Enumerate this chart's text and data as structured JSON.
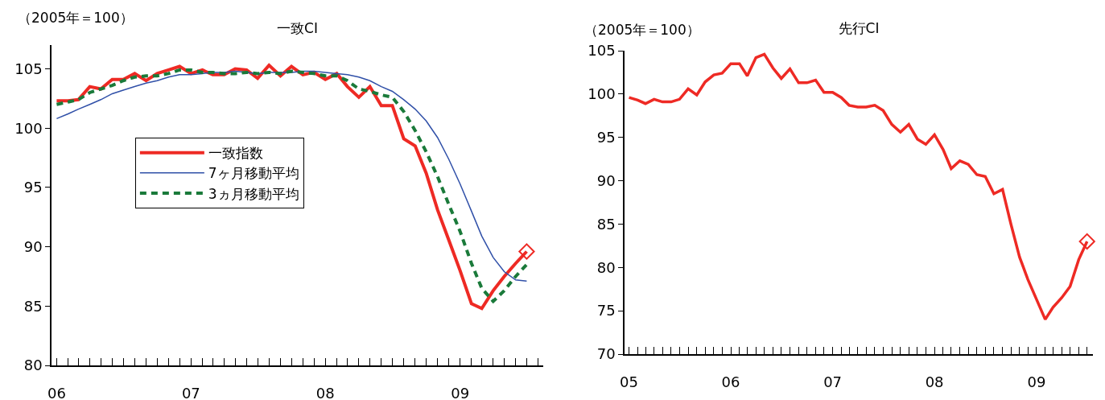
{
  "chart_data": [
    {
      "type": "line",
      "title": "一致CI",
      "ylabel": "（2005年＝100）",
      "x": [
        "2006-01",
        "2006-02",
        "2006-03",
        "2006-04",
        "2006-05",
        "2006-06",
        "2006-07",
        "2006-08",
        "2006-09",
        "2006-10",
        "2006-11",
        "2006-12",
        "2007-01",
        "2007-02",
        "2007-03",
        "2007-04",
        "2007-05",
        "2007-06",
        "2007-07",
        "2007-08",
        "2007-09",
        "2007-10",
        "2007-11",
        "2007-12",
        "2008-01",
        "2008-02",
        "2008-03",
        "2008-04",
        "2008-05",
        "2008-06",
        "2008-07",
        "2008-08",
        "2008-09",
        "2008-10",
        "2008-11",
        "2008-12",
        "2009-01",
        "2009-02",
        "2009-03",
        "2009-04",
        "2009-05",
        "2009-06",
        "2009-07"
      ],
      "series": [
        {
          "name": "一致指数",
          "color": "#ee2a24",
          "values": [
            102.3,
            102.3,
            102.4,
            103.5,
            103.3,
            104.1,
            104.1,
            104.6,
            104.0,
            104.6,
            104.9,
            105.2,
            104.6,
            104.9,
            104.5,
            104.5,
            105.0,
            104.9,
            104.2,
            105.3,
            104.4,
            105.2,
            104.5,
            104.7,
            104.1,
            104.6,
            103.5,
            102.6,
            103.5,
            101.9,
            101.9,
            99.1,
            98.5,
            96.2,
            93.1,
            90.6,
            88.0,
            85.2,
            84.8,
            86.3,
            87.5,
            88.6,
            89.6
          ]
        },
        {
          "name": "7ヶ月移動平均",
          "color": "#3050a8",
          "values": [
            100.8,
            101.2,
            101.6,
            102.0,
            102.4,
            102.9,
            103.2,
            103.5,
            103.8,
            104.0,
            104.3,
            104.5,
            104.5,
            104.6,
            104.7,
            104.7,
            104.8,
            104.7,
            104.6,
            104.7,
            104.7,
            104.7,
            104.8,
            104.8,
            104.7,
            104.6,
            104.5,
            104.3,
            104.0,
            103.5,
            103.1,
            102.4,
            101.6,
            100.6,
            99.2,
            97.4,
            95.3,
            93.0,
            90.9,
            89.1,
            87.9,
            87.2,
            87.1
          ]
        },
        {
          "name": "3ヵ月移動平均",
          "color": "#1a7a3a",
          "line_style": "dashed",
          "values": [
            102.0,
            102.2,
            102.4,
            103.0,
            103.3,
            103.6,
            104.0,
            104.3,
            104.4,
            104.4,
            104.6,
            104.9,
            104.9,
            104.7,
            104.7,
            104.6,
            104.6,
            104.7,
            104.6,
            104.7,
            104.6,
            104.8,
            104.7,
            104.6,
            104.4,
            104.4,
            104.0,
            103.3,
            103.1,
            102.8,
            102.6,
            101.4,
            99.8,
            98.0,
            95.9,
            93.6,
            91.3,
            88.6,
            86.5,
            85.4,
            86.3,
            87.5,
            88.5
          ]
        },
        {
          "type": "scatter",
          "x": [
            "2009-07"
          ],
          "color": "#ee2a24",
          "marker": "diamond",
          "values": [
            89.6
          ]
        }
      ],
      "xlim": [
        "2005-12-18",
        "2009-08-15"
      ],
      "xticks": [
        {
          "value": "2006-01",
          "label": "06"
        },
        {
          "value": "2007-01",
          "label": "07"
        },
        {
          "value": "2008-01",
          "label": "08"
        },
        {
          "value": "2009-01",
          "label": "09"
        }
      ],
      "ylim": [
        80,
        107
      ],
      "yticks": [
        80,
        85,
        90,
        95,
        100,
        105
      ],
      "grid": false,
      "legend": "center"
    },
    {
      "type": "line",
      "title": "先行CI",
      "ylabel": "（2005年＝100）",
      "x": [
        "2005-01",
        "2005-02",
        "2005-03",
        "2005-04",
        "2005-05",
        "2005-06",
        "2005-07",
        "2005-08",
        "2005-09",
        "2005-10",
        "2005-11",
        "2005-12",
        "2006-01",
        "2006-02",
        "2006-03",
        "2006-04",
        "2006-05",
        "2006-06",
        "2006-07",
        "2006-08",
        "2006-09",
        "2006-10",
        "2006-11",
        "2006-12",
        "2007-01",
        "2007-02",
        "2007-03",
        "2007-04",
        "2007-05",
        "2007-06",
        "2007-07",
        "2007-08",
        "2007-09",
        "2007-10",
        "2007-11",
        "2007-12",
        "2008-01",
        "2008-02",
        "2008-03",
        "2008-04",
        "2008-05",
        "2008-06",
        "2008-07",
        "2008-08",
        "2008-09",
        "2008-10",
        "2008-11",
        "2008-12",
        "2009-01",
        "2009-02",
        "2009-03",
        "2009-04",
        "2009-05",
        "2009-06",
        "2009-07"
      ],
      "series": [
        {
          "color": "#ee2a24",
          "values": [
            99.6,
            99.3,
            98.9,
            99.4,
            99.1,
            99.1,
            99.4,
            100.6,
            99.9,
            101.4,
            102.2,
            102.4,
            103.5,
            103.5,
            102.1,
            104.2,
            104.6,
            103.0,
            101.8,
            102.9,
            101.3,
            101.3,
            101.6,
            100.2,
            100.2,
            99.6,
            98.7,
            98.5,
            98.5,
            98.7,
            98.1,
            96.5,
            95.6,
            96.5,
            94.8,
            94.2,
            95.3,
            93.6,
            91.4,
            92.3,
            91.9,
            90.7,
            90.5,
            88.5,
            89.0,
            85.0,
            81.2,
            78.6,
            76.3,
            74.0,
            75.4,
            76.5,
            77.8,
            80.9,
            83.0
          ]
        },
        {
          "type": "scatter",
          "x": [
            "2009-07"
          ],
          "color": "#ee2a24",
          "marker": "diamond",
          "values": [
            83.0
          ]
        }
      ],
      "xlim": [
        "2004-12-16",
        "2009-07-22"
      ],
      "xticks": [
        {
          "value": "2005-01",
          "label": "05"
        },
        {
          "value": "2006-01",
          "label": "06"
        },
        {
          "value": "2007-01",
          "label": "07"
        },
        {
          "value": "2008-01",
          "label": "08"
        },
        {
          "value": "2009-01",
          "label": "09"
        }
      ],
      "ylim": [
        70,
        105
      ],
      "yticks": [
        70,
        75,
        80,
        85,
        90,
        95,
        100,
        105
      ],
      "grid": false,
      "legend": false
    }
  ]
}
